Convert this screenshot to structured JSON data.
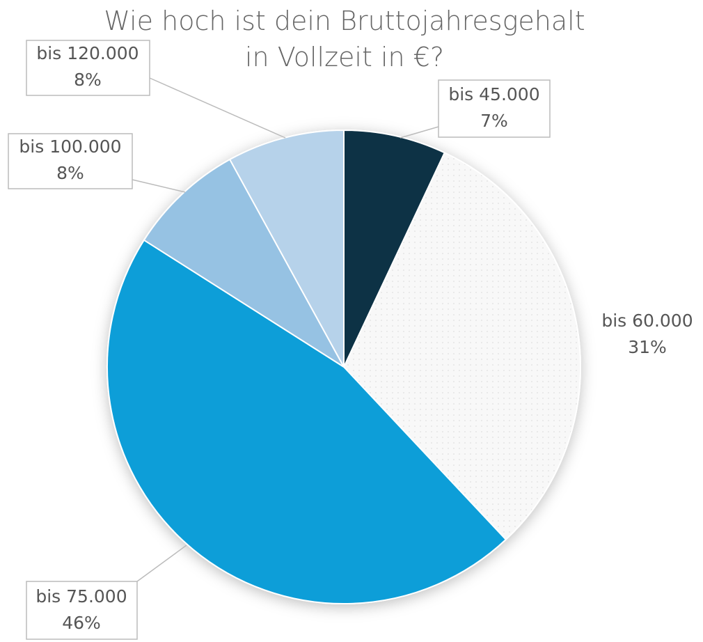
{
  "chart_data": {
    "type": "pie",
    "title": "Wie hoch ist dein Bruttojahresgehalt in Vollzeit in €?",
    "categories": [
      "bis 45.000",
      "bis 60.000",
      "bis 75.000",
      "bis 100.000",
      "bis 120.000"
    ],
    "values": [
      7,
      31,
      46,
      8,
      8
    ],
    "value_labels": [
      "7%",
      "31%",
      "46%",
      "8%",
      "8%"
    ],
    "colors": [
      "#0b3044",
      "#f8f8f8",
      "#0f9ed8",
      "#96c2e3",
      "#b6d2ea"
    ]
  }
}
